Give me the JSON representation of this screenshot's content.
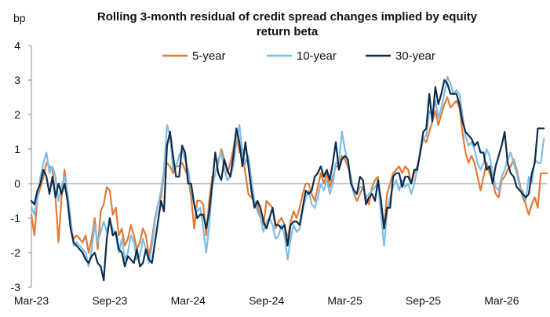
{
  "chart_data": {
    "type": "line",
    "title": "Rolling 3-month residual of credit spread changes implied by equity return beta",
    "title_lines": [
      "Rolling 3-month residual of credit spread changes implied by equity",
      "return beta"
    ],
    "ylabel": "bp",
    "xlabel": "",
    "ylim": [
      -3,
      4
    ],
    "yticks": [
      4,
      3,
      2,
      1,
      0,
      -1,
      -2,
      -3
    ],
    "xticks": [
      "Mar-23",
      "Sep-23",
      "Mar-24",
      "Sep-24",
      "Mar-25",
      "Sep-25",
      "Mar-26"
    ],
    "xtick_index": [
      0,
      26,
      52,
      78,
      104,
      130,
      156
    ],
    "zero_line": true,
    "grid": false,
    "legend_position": "top-center",
    "x": "weekly observations from Mar-23 to Jun-26",
    "series": [
      {
        "name": "5-year",
        "color": "#E07B39",
        "values": [
          -0.9,
          -1.5,
          -0.4,
          -0.1,
          0.2,
          0.6,
          0.5,
          0.4,
          -0.4,
          -1.7,
          -0.4,
          0.4,
          -0.4,
          -1.2,
          -1.6,
          -1.5,
          -1.6,
          -1.7,
          -1.5,
          -2.0,
          -1.6,
          -1.0,
          -1.9,
          -0.8,
          -0.6,
          -0.1,
          -0.2,
          -0.9,
          -0.7,
          -1.5,
          -1.3,
          -1.8,
          -1.6,
          -1.2,
          -1.5,
          -1.9,
          -1.7,
          -1.3,
          -1.5,
          -2.1,
          -1.6,
          -1.0,
          -0.6,
          -0.4,
          0.3,
          0.6,
          0.5,
          0.3,
          0.5,
          0.5,
          0.6,
          0.4,
          0.2,
          -0.4,
          -1.3,
          -0.5,
          -0.5,
          -0.6,
          -1.5,
          -0.5,
          0.2,
          0.3,
          0.6,
          1.0,
          0.7,
          0.3,
          0.6,
          1.0,
          1.5,
          0.9,
          1.0,
          0.3,
          -0.3,
          -0.4,
          -0.5,
          -0.6,
          -1.0,
          -1.2,
          -0.5,
          -0.6,
          -0.7,
          -1.3,
          -1.1,
          -1.0,
          -1.2,
          -1.6,
          -1.1,
          -0.8,
          -1.0,
          -0.7,
          -0.3,
          0.0,
          0.0,
          -0.3,
          -0.5,
          -0.1,
          0.3,
          0.0,
          0.3,
          -0.1,
          0.2,
          0.5,
          0.5,
          0.8,
          0.7,
          0.5,
          0.2,
          -0.3,
          -0.5,
          -0.3,
          -0.1,
          -0.4,
          -0.6,
          -0.1,
          0.1,
          0.2,
          -0.8,
          -1.3,
          -0.3,
          0.0,
          0.3,
          0.4,
          0.5,
          0.3,
          0.5,
          0.4,
          0.0,
          0.3,
          0.5,
          0.9,
          1.3,
          1.2,
          1.5,
          1.8,
          2.1,
          1.7,
          2.0,
          2.3,
          2.5,
          2.2,
          2.3,
          2.4,
          2.2,
          1.5,
          0.9,
          0.6,
          0.8,
          0.6,
          0.2,
          -0.2,
          0.2,
          0.6,
          0.3,
          0.1,
          -0.3,
          -0.4,
          0.1,
          0.2,
          0.4,
          0.5,
          0.7,
          0.4,
          0.0,
          -0.4,
          -0.6,
          -0.9,
          -0.6,
          -0.4,
          -0.7,
          0.3,
          0.3,
          0.3
        ]
      },
      {
        "name": "10-year",
        "color": "#7DBDE8",
        "values": [
          -0.7,
          -0.9,
          -0.4,
          0.2,
          0.6,
          0.9,
          0.3,
          0.5,
          0.2,
          -0.5,
          -0.1,
          0.2,
          -0.3,
          -1.0,
          -1.8,
          -1.7,
          -1.8,
          -1.9,
          -2.0,
          -2.4,
          -1.9,
          -1.2,
          -1.7,
          -1.4,
          -1.1,
          -1.4,
          -1.1,
          -1.3,
          -1.5,
          -2.0,
          -1.6,
          -2.2,
          -2.0,
          -1.5,
          -1.7,
          -2.2,
          -2.1,
          -1.6,
          -1.9,
          -2.3,
          -1.8,
          -1.1,
          -0.6,
          -0.2,
          0.4,
          1.7,
          1.4,
          0.4,
          0.5,
          0.8,
          1.0,
          0.7,
          0.4,
          -0.2,
          -0.6,
          -0.8,
          -0.7,
          -1.3,
          -2.0,
          -1.2,
          -0.1,
          0.3,
          0.7,
          0.9,
          0.4,
          0.1,
          0.2,
          0.5,
          1.2,
          1.7,
          0.9,
          0.6,
          0.8,
          0.1,
          -0.5,
          -0.8,
          -1.0,
          -1.4,
          -1.1,
          -1.0,
          -1.2,
          -1.6,
          -1.5,
          -1.2,
          -1.5,
          -2.2,
          -1.6,
          -1.2,
          -1.4,
          -1.3,
          -0.8,
          -0.4,
          -0.2,
          -0.6,
          -0.7,
          -0.4,
          0.0,
          -0.2,
          0.1,
          -0.3,
          0.0,
          0.6,
          0.6,
          1.5,
          1.0,
          0.6,
          0.2,
          -0.3,
          -0.3,
          -0.1,
          -0.1,
          -0.4,
          -0.3,
          -0.2,
          -0.1,
          0.0,
          -0.9,
          -1.8,
          -0.8,
          -0.4,
          -0.1,
          0.1,
          -0.2,
          0.1,
          -0.1,
          0.0,
          -0.3,
          0.0,
          0.4,
          1.0,
          1.3,
          1.4,
          2.1,
          2.0,
          2.4,
          1.9,
          2.2,
          2.6,
          3.1,
          2.9,
          2.6,
          2.7,
          2.6,
          2.0,
          1.4,
          1.1,
          1.2,
          1.0,
          0.6,
          0.4,
          0.6,
          1.0,
          0.8,
          0.3,
          -0.1,
          -0.2,
          0.2,
          0.4,
          0.7,
          0.9,
          0.6,
          0.3,
          -0.1,
          -0.2,
          -0.5,
          0.2,
          0.0,
          0.7,
          0.6,
          0.6,
          1.3
        ]
      },
      {
        "name": "30-year",
        "color": "#0F2C4A",
        "values": [
          -0.5,
          -0.6,
          -0.2,
          0.0,
          0.4,
          0.2,
          -0.3,
          0.2,
          -0.4,
          0.0,
          -0.3,
          0.0,
          -0.5,
          -1.3,
          -1.7,
          -1.8,
          -1.9,
          -2.0,
          -2.2,
          -2.3,
          -2.1,
          -2.0,
          -2.3,
          -2.4,
          -2.8,
          -1.6,
          -1.0,
          -1.5,
          -1.4,
          -1.9,
          -2.0,
          -2.4,
          -2.1,
          -2.2,
          -2.3,
          -1.9,
          -2.4,
          -2.3,
          -1.9,
          -2.2,
          -2.3,
          -1.7,
          -1.1,
          -0.5,
          -0.8,
          1.1,
          1.5,
          0.8,
          0.2,
          0.2,
          1.1,
          0.9,
          0.0,
          0.0,
          -0.6,
          -1.0,
          -0.9,
          -0.9,
          -1.3,
          -0.8,
          0.0,
          0.9,
          0.3,
          0.1,
          0.7,
          0.4,
          0.2,
          0.8,
          1.6,
          1.2,
          0.5,
          1.2,
          0.5,
          -0.2,
          -0.7,
          -0.5,
          -0.7,
          -1.1,
          -1.3,
          -1.0,
          -0.7,
          -1.2,
          -1.2,
          -1.3,
          -1.2,
          -1.8,
          -1.2,
          -1.1,
          -1.1,
          -1.2,
          -0.7,
          -0.2,
          -0.3,
          -0.2,
          0.2,
          0.3,
          0.5,
          0.2,
          0.4,
          0.1,
          0.6,
          1.2,
          0.4,
          0.7,
          0.8,
          0.7,
          0.0,
          -0.2,
          -0.3,
          0.2,
          0.1,
          -0.6,
          -0.4,
          -0.3,
          -0.5,
          0.1,
          -0.5,
          -1.3,
          -0.7,
          -0.7,
          0.2,
          0.3,
          0.3,
          -0.1,
          0.2,
          0.2,
          0.0,
          0.4,
          0.4,
          0.9,
          1.5,
          1.6,
          2.6,
          1.8,
          2.8,
          2.3,
          2.6,
          3.0,
          2.9,
          2.6,
          2.6,
          2.6,
          2.3,
          1.8,
          1.5,
          1.4,
          1.3,
          1.1,
          1.2,
          0.9,
          0.9,
          0.4,
          0.5,
          0.0,
          0.5,
          0.8,
          1.1,
          1.5,
          0.6,
          0.3,
          0.2,
          -0.1,
          -0.2,
          -0.3,
          -0.4,
          -0.3,
          0.3,
          0.6,
          1.6,
          1.6,
          1.6
        ]
      }
    ]
  }
}
